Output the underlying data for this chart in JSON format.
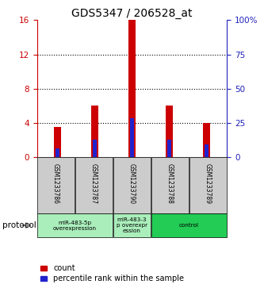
{
  "title": "GDS5347 / 206528_at",
  "samples": [
    "GSM1233786",
    "GSM1233787",
    "GSM1233790",
    "GSM1233788",
    "GSM1233789"
  ],
  "count_values": [
    3.5,
    6.0,
    16.0,
    6.0,
    4.0
  ],
  "percentile_values": [
    1.0,
    2.0,
    4.5,
    2.0,
    1.5
  ],
  "left_ylim": [
    0,
    16
  ],
  "left_yticks": [
    0,
    4,
    8,
    12,
    16
  ],
  "right_yticks": [
    0,
    25,
    50,
    75,
    100
  ],
  "right_yticklabels": [
    "0",
    "25",
    "50",
    "75",
    "100%"
  ],
  "bar_color_red": "#cc0000",
  "bar_color_blue": "#2222cc",
  "protocol_groups": [
    {
      "label": "miR-483-5p\noverexpression",
      "indices": [
        0,
        1
      ],
      "color": "#aaeebb"
    },
    {
      "label": "miR-483-3\np overexpr\nession",
      "indices": [
        2
      ],
      "color": "#aaeebb"
    },
    {
      "label": "control",
      "indices": [
        3,
        4
      ],
      "color": "#22cc55"
    }
  ],
  "legend_count_label": "count",
  "legend_percentile_label": "percentile rank within the sample",
  "protocol_label": "protocol",
  "bg_color": "#ffffff",
  "left_axis_color": "#cc0000",
  "right_axis_color": "#2222bb",
  "sample_box_color": "#cccccc",
  "title_fontsize": 10,
  "tick_fontsize": 7.5,
  "legend_fontsize": 7
}
